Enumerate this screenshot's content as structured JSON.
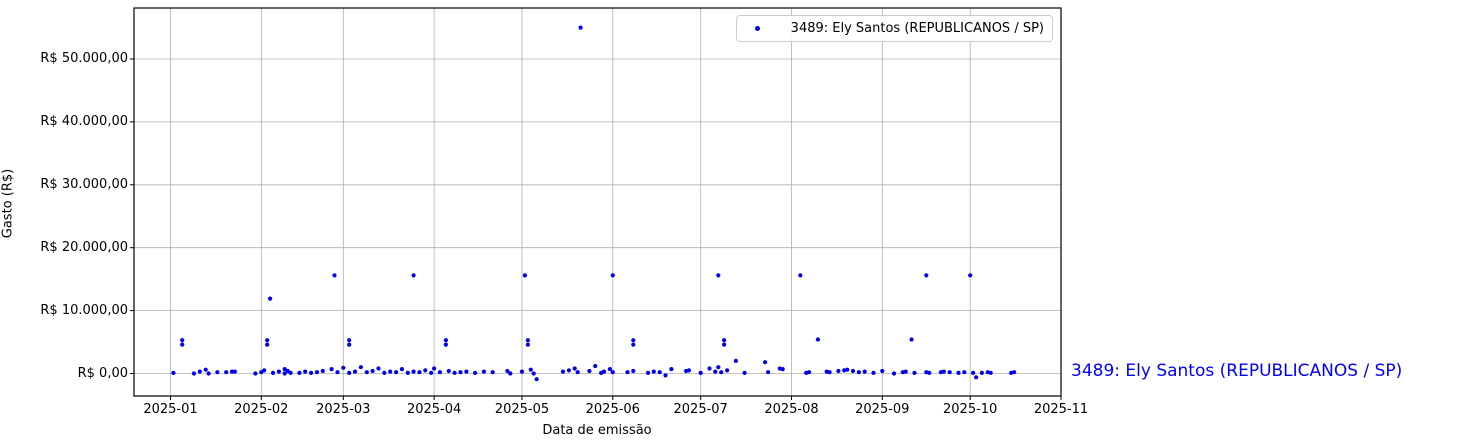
{
  "annotation": {
    "label": "3489: Ely Santos (REPUBLICANOS / SP)",
    "color": "#0000ff"
  },
  "colors": {
    "marker": "#0000ee",
    "grid": "#b0b0b0",
    "frame": "#000000",
    "background": "#ffffff"
  },
  "chart_data": {
    "type": "scatter",
    "title": "",
    "xlabel": "Data de emissão",
    "ylabel": "Gasto (R$)",
    "grid": true,
    "x_tick_labels": [
      "2025-01",
      "2025-02",
      "2025-03",
      "2025-04",
      "2025-05",
      "2025-06",
      "2025-07",
      "2025-08",
      "2025-09",
      "2025-10",
      "2025-11"
    ],
    "y_tick_labels": [
      "R$ 0,00",
      "R$ 10.000,00",
      "R$ 20.000,00",
      "R$ 30.000,00",
      "R$ 40.000,00",
      "R$ 50.000,00"
    ],
    "y_tick_values": [
      0,
      10000,
      20000,
      30000,
      40000,
      50000
    ],
    "x_range": [
      "2024-12-19",
      "2025-11-01"
    ],
    "y_range": [
      -3600,
      58100
    ],
    "legend": {
      "position": "upper right",
      "entries": [
        {
          "label": "3489: Ely Santos (REPUBLICANOS / SP)",
          "marker_color": "#0000ee"
        }
      ]
    },
    "series": [
      {
        "name": "3489: Ely Santos (REPUBLICANOS / SP)",
        "color": "#0000ee",
        "points": [
          [
            "2025-05-21",
            55000
          ],
          [
            "2025-02-26",
            15600
          ],
          [
            "2025-03-25",
            15600
          ],
          [
            "2025-05-02",
            15600
          ],
          [
            "2025-06-01",
            15600
          ],
          [
            "2025-07-07",
            15600
          ],
          [
            "2025-08-04",
            15600
          ],
          [
            "2025-09-16",
            15600
          ],
          [
            "2025-10-01",
            15600
          ],
          [
            "2025-02-04",
            11900
          ],
          [
            "2025-01-05",
            5300
          ],
          [
            "2025-01-05",
            4600
          ],
          [
            "2025-02-03",
            5300
          ],
          [
            "2025-02-03",
            4600
          ],
          [
            "2025-03-03",
            5300
          ],
          [
            "2025-03-03",
            4600
          ],
          [
            "2025-04-05",
            5300
          ],
          [
            "2025-04-05",
            4600
          ],
          [
            "2025-05-03",
            5300
          ],
          [
            "2025-05-03",
            4600
          ],
          [
            "2025-06-08",
            5300
          ],
          [
            "2025-06-08",
            4600
          ],
          [
            "2025-07-09",
            5300
          ],
          [
            "2025-07-09",
            4600
          ],
          [
            "2025-08-10",
            5400
          ],
          [
            "2025-09-11",
            5400
          ],
          [
            "2025-01-02",
            100
          ],
          [
            "2025-01-09",
            0
          ],
          [
            "2025-01-11",
            300
          ],
          [
            "2025-01-13",
            600
          ],
          [
            "2025-01-14",
            0
          ],
          [
            "2025-01-17",
            200
          ],
          [
            "2025-01-20",
            200
          ],
          [
            "2025-01-22",
            300
          ],
          [
            "2025-01-23",
            300
          ],
          [
            "2025-01-30",
            0
          ],
          [
            "2025-02-01",
            200
          ],
          [
            "2025-02-02",
            500
          ],
          [
            "2025-02-05",
            100
          ],
          [
            "2025-02-07",
            300
          ],
          [
            "2025-02-09",
            700
          ],
          [
            "2025-02-09",
            0
          ],
          [
            "2025-02-10",
            400
          ],
          [
            "2025-02-11",
            100
          ],
          [
            "2025-02-14",
            100
          ],
          [
            "2025-02-16",
            300
          ],
          [
            "2025-02-18",
            100
          ],
          [
            "2025-02-20",
            200
          ],
          [
            "2025-02-22",
            400
          ],
          [
            "2025-02-25",
            700
          ],
          [
            "2025-02-27",
            200
          ],
          [
            "2025-03-01",
            900
          ],
          [
            "2025-03-03",
            100
          ],
          [
            "2025-03-05",
            300
          ],
          [
            "2025-03-07",
            1000
          ],
          [
            "2025-03-09",
            200
          ],
          [
            "2025-03-11",
            400
          ],
          [
            "2025-03-13",
            800
          ],
          [
            "2025-03-15",
            100
          ],
          [
            "2025-03-17",
            300
          ],
          [
            "2025-03-19",
            200
          ],
          [
            "2025-03-21",
            700
          ],
          [
            "2025-03-23",
            100
          ],
          [
            "2025-03-25",
            300
          ],
          [
            "2025-03-27",
            200
          ],
          [
            "2025-03-29",
            500
          ],
          [
            "2025-03-31",
            100
          ],
          [
            "2025-04-01",
            800
          ],
          [
            "2025-04-03",
            200
          ],
          [
            "2025-04-06",
            400
          ],
          [
            "2025-04-08",
            100
          ],
          [
            "2025-04-10",
            200
          ],
          [
            "2025-04-12",
            300
          ],
          [
            "2025-04-15",
            100
          ],
          [
            "2025-04-18",
            300
          ],
          [
            "2025-04-21",
            200
          ],
          [
            "2025-04-26",
            400
          ],
          [
            "2025-04-27",
            0
          ],
          [
            "2025-05-01",
            300
          ],
          [
            "2025-05-04",
            600
          ],
          [
            "2025-05-05",
            0
          ],
          [
            "2025-05-06",
            -900
          ],
          [
            "2025-05-15",
            300
          ],
          [
            "2025-05-17",
            500
          ],
          [
            "2025-05-19",
            800
          ],
          [
            "2025-05-20",
            200
          ],
          [
            "2025-05-24",
            400
          ],
          [
            "2025-05-26",
            1200
          ],
          [
            "2025-05-28",
            100
          ],
          [
            "2025-05-29",
            300
          ],
          [
            "2025-05-31",
            700
          ],
          [
            "2025-06-01",
            200
          ],
          [
            "2025-06-06",
            200
          ],
          [
            "2025-06-08",
            400
          ],
          [
            "2025-06-13",
            100
          ],
          [
            "2025-06-15",
            300
          ],
          [
            "2025-06-17",
            200
          ],
          [
            "2025-06-19",
            -300
          ],
          [
            "2025-06-21",
            700
          ],
          [
            "2025-06-26",
            400
          ],
          [
            "2025-06-27",
            500
          ],
          [
            "2025-07-01",
            100
          ],
          [
            "2025-07-04",
            800
          ],
          [
            "2025-07-06",
            300
          ],
          [
            "2025-07-07",
            1000
          ],
          [
            "2025-07-08",
            200
          ],
          [
            "2025-07-10",
            500
          ],
          [
            "2025-07-13",
            2000
          ],
          [
            "2025-07-16",
            100
          ],
          [
            "2025-07-23",
            1800
          ],
          [
            "2025-07-24",
            200
          ],
          [
            "2025-07-28",
            800
          ],
          [
            "2025-07-29",
            700
          ],
          [
            "2025-08-06",
            100
          ],
          [
            "2025-08-07",
            200
          ],
          [
            "2025-08-13",
            300
          ],
          [
            "2025-08-14",
            200
          ],
          [
            "2025-08-17",
            400
          ],
          [
            "2025-08-19",
            500
          ],
          [
            "2025-08-20",
            600
          ],
          [
            "2025-08-22",
            400
          ],
          [
            "2025-08-24",
            200
          ],
          [
            "2025-08-26",
            300
          ],
          [
            "2025-08-29",
            100
          ],
          [
            "2025-09-01",
            400
          ],
          [
            "2025-09-05",
            0
          ],
          [
            "2025-09-08",
            200
          ],
          [
            "2025-09-09",
            300
          ],
          [
            "2025-09-12",
            100
          ],
          [
            "2025-09-16",
            200
          ],
          [
            "2025-09-17",
            100
          ],
          [
            "2025-09-21",
            200
          ],
          [
            "2025-09-22",
            300
          ],
          [
            "2025-09-24",
            200
          ],
          [
            "2025-09-27",
            100
          ],
          [
            "2025-09-29",
            200
          ],
          [
            "2025-10-02",
            100
          ],
          [
            "2025-10-03",
            -600
          ],
          [
            "2025-10-05",
            100
          ],
          [
            "2025-10-07",
            200
          ],
          [
            "2025-10-08",
            100
          ],
          [
            "2025-10-15",
            100
          ],
          [
            "2025-10-16",
            200
          ]
        ]
      }
    ]
  }
}
